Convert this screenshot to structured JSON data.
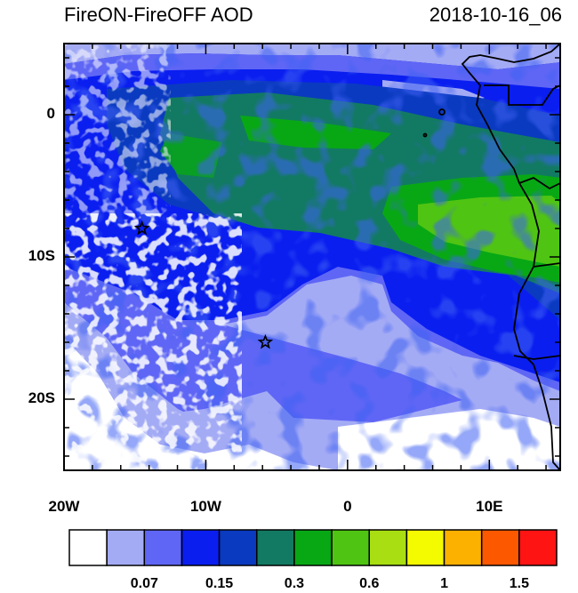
{
  "title": "FireON-FireOFF AOD",
  "datetime": "2018-10-16_06",
  "map": {
    "lon_range": [
      -20,
      15
    ],
    "lat_range": [
      -25,
      5
    ],
    "y_ticks": [
      {
        "value": 0,
        "label": "0"
      },
      {
        "value": -10,
        "label": "10S"
      },
      {
        "value": -20,
        "label": "20S"
      }
    ],
    "x_ticks": [
      {
        "value": -20,
        "label": "20W"
      },
      {
        "value": -10,
        "label": "10W"
      },
      {
        "value": 0,
        "label": "0"
      },
      {
        "value": 10,
        "label": "10E"
      }
    ],
    "stars": [
      {
        "lon": -14.5,
        "lat": -8.0
      },
      {
        "lon": -5.8,
        "lat": -16.0
      }
    ]
  },
  "colorbar": {
    "colors": [
      "#ffffff",
      "#a4abf5",
      "#5f66f5",
      "#0a1ef0",
      "#0a3ac0",
      "#127a62",
      "#08a815",
      "#50c413",
      "#a8de12",
      "#f4fa00",
      "#fcb100",
      "#fb5800",
      "#ff1414"
    ],
    "labels": [
      {
        "boundary": 2,
        "label": "0.07"
      },
      {
        "boundary": 4,
        "label": "0.15"
      },
      {
        "boundary": 6,
        "label": "0.3"
      },
      {
        "boundary": 8,
        "label": "0.6"
      },
      {
        "boundary": 10,
        "label": "1"
      },
      {
        "boundary": 12,
        "label": "1.5"
      }
    ]
  }
}
